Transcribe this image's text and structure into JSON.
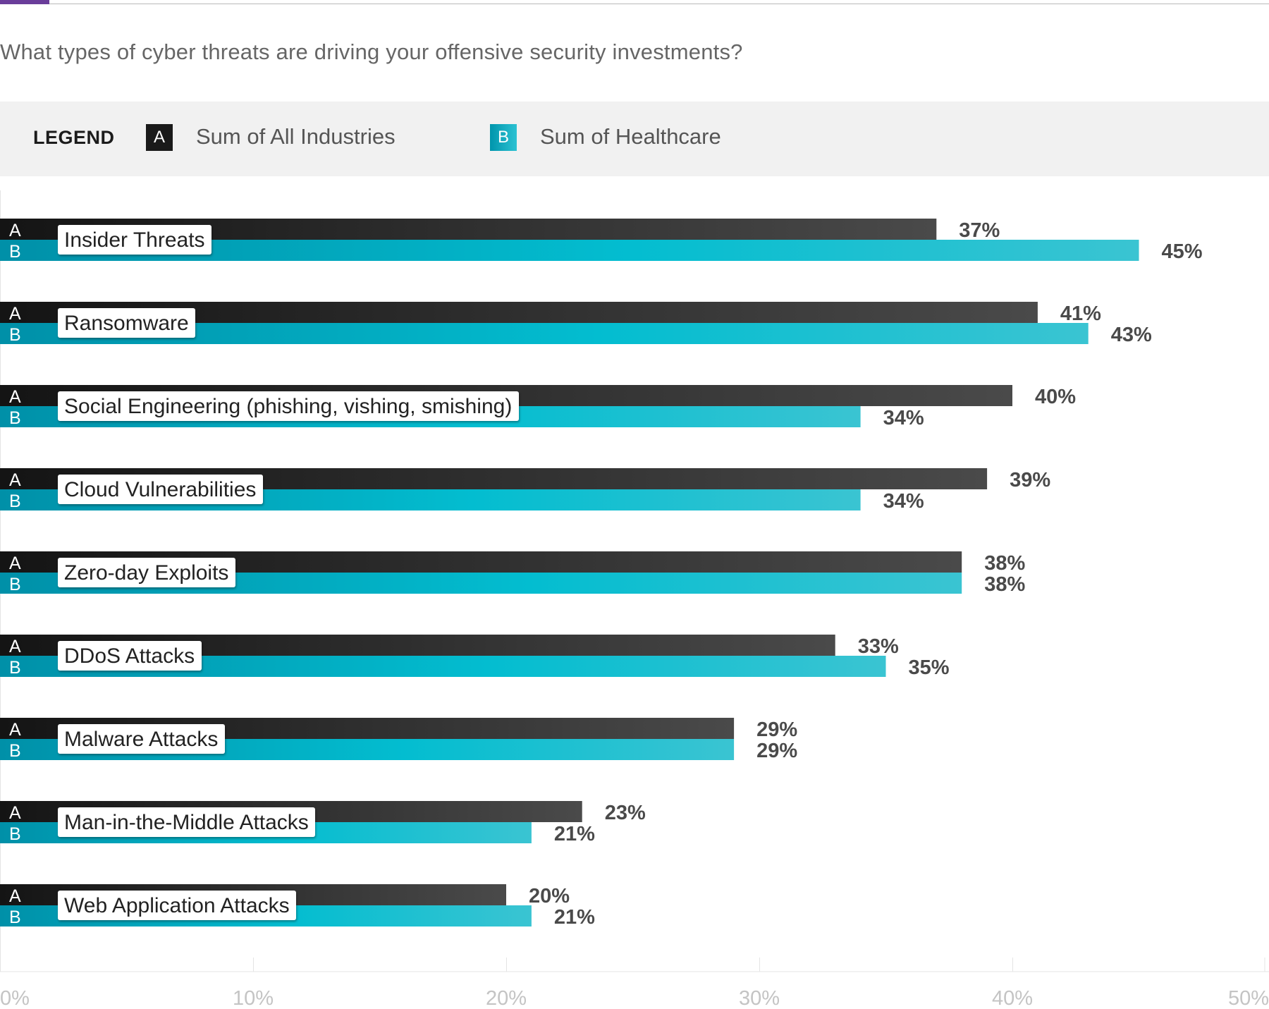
{
  "question": "What types of cyber threats are driving your offensive security investments?",
  "legend": {
    "title": "LEGEND",
    "a_marker": "A",
    "a_label": "Sum of All Industries",
    "b_marker": "B",
    "b_label": "Sum of Healthcare"
  },
  "colors": {
    "series_a_start": "#141414",
    "series_a_end": "#4a4a4a",
    "series_b_start": "#0090a8",
    "series_b_mid": "#03bdd0",
    "series_b_end": "#3ac4d2",
    "value_label": "#4a4a4a",
    "tick_label": "#c4c4c4",
    "grid": "#e4e4e4"
  },
  "chart_data": {
    "type": "bar",
    "orientation": "horizontal",
    "title": "What types of cyber threats are driving your offensive security investments?",
    "categories": [
      "Insider Threats",
      "Ransomware",
      "Social Engineering (phishing, vishing, smishing)",
      "Cloud Vulnerabilities",
      "Zero-day Exploits",
      "DDoS Attacks",
      "Malware Attacks",
      "Man-in-the-Middle Attacks",
      "Web Application Attacks"
    ],
    "series": [
      {
        "name": "Sum of All Industries",
        "marker": "A",
        "values": [
          37,
          41,
          40,
          39,
          38,
          33,
          29,
          23,
          20
        ]
      },
      {
        "name": "Sum of Healthcare",
        "marker": "B",
        "values": [
          45,
          43,
          34,
          34,
          38,
          35,
          29,
          21,
          21
        ]
      }
    ],
    "value_suffix": "%",
    "xlim": [
      0,
      50
    ],
    "xticks": [
      "0%",
      "10%",
      "20%",
      "30%",
      "40%",
      "50%"
    ],
    "xlabel": "",
    "ylabel": "",
    "grid": true
  }
}
